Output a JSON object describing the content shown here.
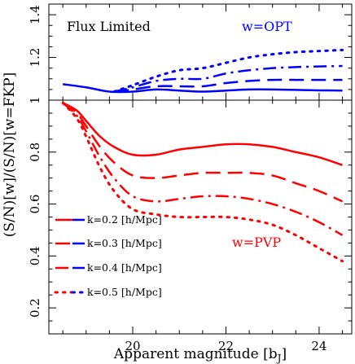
{
  "chart_data": [
    {
      "type": "line",
      "panel": "top",
      "annotations": [
        {
          "text": "Flux Limited",
          "color": "#000000"
        },
        {
          "text": "w=OPT",
          "color": "#0000ff"
        }
      ],
      "xlim": [
        18.2,
        24.7
      ],
      "ylim": [
        1.0,
        1.45
      ],
      "yticks": [
        "1",
        "1.2",
        "1.4"
      ],
      "series": [
        {
          "k": "0.2",
          "style": "solid",
          "color": "#0000ff",
          "x": [
            18.5,
            19.0,
            19.5,
            20.0,
            20.5,
            21.0,
            21.5,
            22.0,
            22.5,
            23.0,
            23.5,
            24.0,
            24.5
          ],
          "y": [
            1.075,
            1.06,
            1.04,
            1.04,
            1.05,
            1.045,
            1.04,
            1.045,
            1.05,
            1.05,
            1.048,
            1.046,
            1.045
          ]
        },
        {
          "k": "0.3",
          "style": "dash",
          "color": "#0000ff",
          "x": [
            19.6,
            20.0,
            20.5,
            21.0,
            21.5,
            22.0,
            22.5,
            23.0,
            23.5,
            24.0,
            24.5
          ],
          "y": [
            1.04,
            1.05,
            1.065,
            1.065,
            1.065,
            1.08,
            1.09,
            1.095,
            1.095,
            1.095,
            1.095
          ]
        },
        {
          "k": "0.4",
          "style": "dashdot",
          "color": "#0000ff",
          "x": [
            19.6,
            20.0,
            20.5,
            21.0,
            21.5,
            22.0,
            22.5,
            23.0,
            23.5,
            24.0,
            24.5
          ],
          "y": [
            1.04,
            1.06,
            1.09,
            1.1,
            1.1,
            1.125,
            1.14,
            1.15,
            1.155,
            1.158,
            1.16
          ]
        },
        {
          "k": "0.5",
          "style": "dot",
          "color": "#0000ff",
          "x": [
            19.6,
            20.0,
            20.5,
            21.0,
            21.5,
            22.0,
            22.5,
            23.0,
            23.5,
            24.0,
            24.5
          ],
          "y": [
            1.04,
            1.07,
            1.11,
            1.14,
            1.15,
            1.175,
            1.2,
            1.215,
            1.225,
            1.23,
            1.235
          ]
        }
      ]
    },
    {
      "type": "line",
      "panel": "bottom",
      "annotations": [
        {
          "text": "w=PVP",
          "color": "#ff0000"
        }
      ],
      "xlabel": "Apparent magnitude [b",
      "xlabel_sub": "J",
      "xlabel_end": "]",
      "ylabel": "(S/N)[w]/(S/N)[w=FKP]",
      "xlim": [
        18.2,
        24.7
      ],
      "ylim": [
        0.1,
        1.0
      ],
      "xticks": [
        "20",
        "22",
        "24"
      ],
      "yticks": [
        "0.2",
        "0.4",
        "0.6",
        "0.8"
      ],
      "legend": [
        {
          "label": "k=0.2 [h/Mpc]",
          "style": "solid"
        },
        {
          "label": "k=0.3 [h/Mpc]",
          "style": "dash"
        },
        {
          "label": "k=0.4 [h/Mpc]",
          "style": "dashdot"
        },
        {
          "label": "k=0.5 [h/Mpc]",
          "style": "dot"
        }
      ],
      "legend_placement": "bottom-left",
      "series": [
        {
          "k": "0.2",
          "style": "solid",
          "color": "#ff0000",
          "x": [
            18.5,
            18.8,
            19.0,
            19.3,
            19.6,
            20.0,
            20.5,
            21.0,
            21.5,
            22.0,
            22.5,
            23.0,
            23.5,
            24.0,
            24.5
          ],
          "y": [
            0.99,
            0.96,
            0.92,
            0.86,
            0.82,
            0.79,
            0.79,
            0.81,
            0.82,
            0.83,
            0.83,
            0.82,
            0.8,
            0.78,
            0.75
          ]
        },
        {
          "k": "0.3",
          "style": "dash",
          "color": "#ff0000",
          "x": [
            18.5,
            18.8,
            19.0,
            19.3,
            19.6,
            20.0,
            20.5,
            21.0,
            21.5,
            22.0,
            22.5,
            23.0,
            23.5,
            24.0,
            24.5
          ],
          "y": [
            0.99,
            0.95,
            0.9,
            0.82,
            0.76,
            0.71,
            0.7,
            0.71,
            0.72,
            0.72,
            0.72,
            0.71,
            0.68,
            0.65,
            0.61
          ]
        },
        {
          "k": "0.4",
          "style": "dashdot",
          "color": "#ff0000",
          "x": [
            18.5,
            18.8,
            19.0,
            19.3,
            19.6,
            20.0,
            20.5,
            21.0,
            21.5,
            22.0,
            22.5,
            23.0,
            23.5,
            24.0,
            24.5
          ],
          "y": [
            0.99,
            0.94,
            0.88,
            0.78,
            0.7,
            0.63,
            0.61,
            0.62,
            0.63,
            0.63,
            0.62,
            0.6,
            0.57,
            0.53,
            0.48
          ]
        },
        {
          "k": "0.5",
          "style": "dot",
          "color": "#ff0000",
          "x": [
            18.5,
            18.8,
            19.0,
            19.3,
            19.6,
            20.0,
            20.5,
            21.0,
            21.5,
            22.0,
            22.5,
            23.0,
            23.5,
            24.0,
            24.5
          ],
          "y": [
            0.99,
            0.93,
            0.86,
            0.74,
            0.65,
            0.58,
            0.56,
            0.55,
            0.55,
            0.55,
            0.54,
            0.52,
            0.48,
            0.43,
            0.38
          ]
        }
      ]
    }
  ]
}
